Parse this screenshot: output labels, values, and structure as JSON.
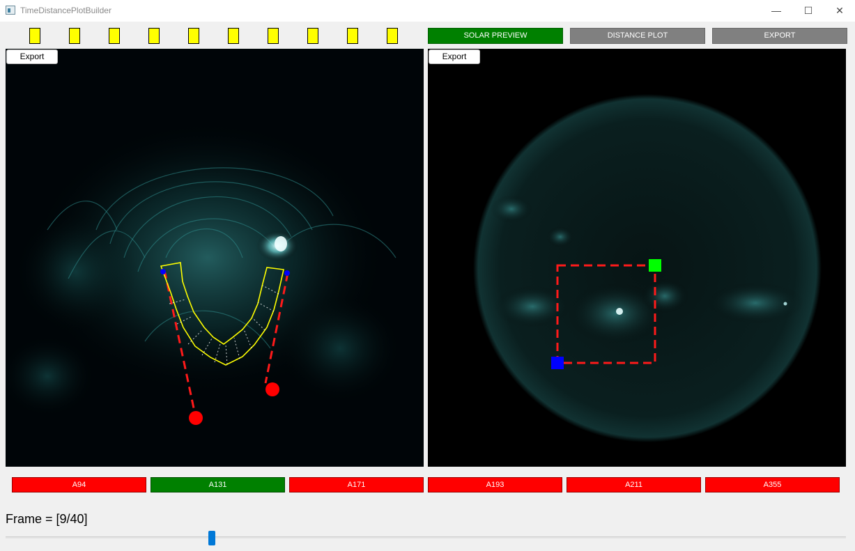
{
  "window": {
    "title": "TimeDistancePlotBuilder",
    "controls": {
      "minimize": "—",
      "maximize": "☐",
      "close": "✕"
    }
  },
  "indicators": {
    "count": 10,
    "color": "#ffff00"
  },
  "mode_buttons": [
    {
      "label": "SOLAR PREVIEW",
      "active": true
    },
    {
      "label": "DISTANCE PLOT",
      "active": false
    },
    {
      "label": "EXPORT",
      "active": false
    }
  ],
  "left_panel": {
    "export_label": "Export"
  },
  "right_panel": {
    "export_label": "Export"
  },
  "wavelengths": [
    {
      "label": "A94",
      "active": false
    },
    {
      "label": "A131",
      "active": true
    },
    {
      "label": "A171",
      "active": false
    },
    {
      "label": "A193",
      "active": false
    },
    {
      "label": "A211",
      "active": false
    },
    {
      "label": "A355",
      "active": false
    }
  ],
  "frame": {
    "label": "Frame = [9/40]",
    "current": 9,
    "total": 40
  },
  "colors": {
    "active_green": "#008000",
    "inactive_gray": "#808080",
    "wavelength_red": "#ff0000",
    "selection_red": "#ff1a1a",
    "path_yellow": "#ffff00",
    "corner_green": "#00ff00",
    "corner_blue": "#0000ff",
    "slider_blue": "#0078d7"
  }
}
